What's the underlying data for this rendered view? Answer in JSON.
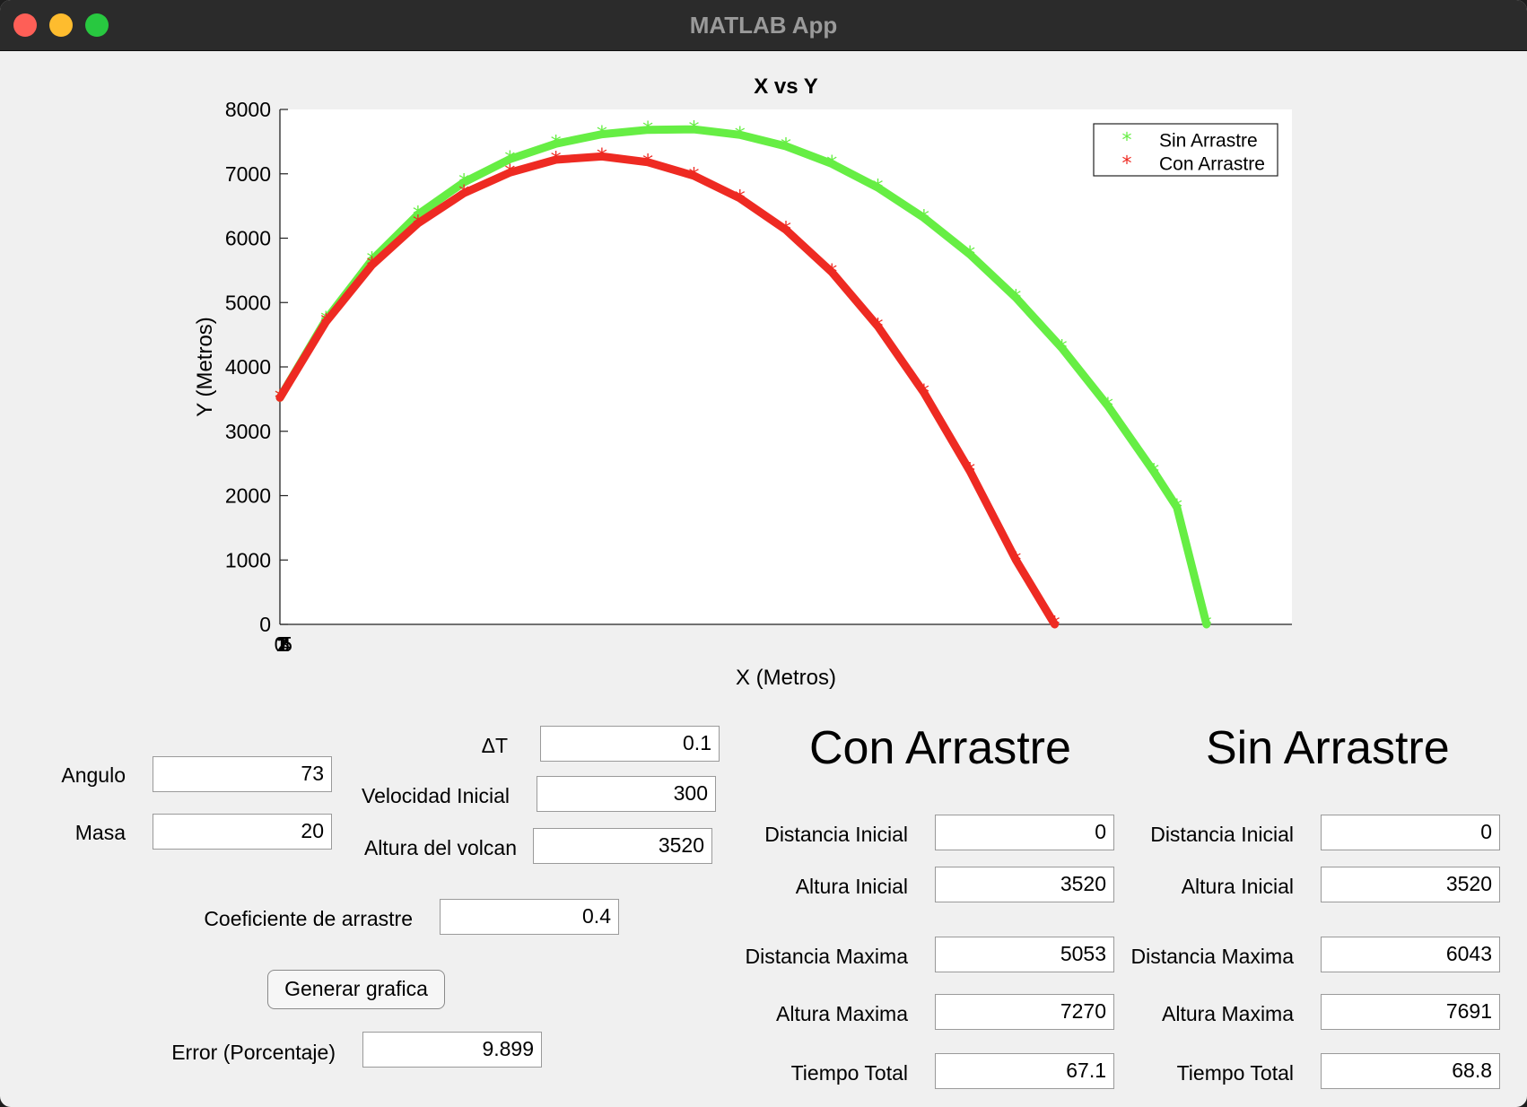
{
  "window": {
    "title": "MATLAB App"
  },
  "chart_data": {
    "type": "scatter",
    "title": "X vs Y",
    "xlabel": "X (Metros)",
    "ylabel": "Y (Metros)",
    "ylim": [
      0,
      8000
    ],
    "y_ticks": [
      "0",
      "1000",
      "2000",
      "3000",
      "4000",
      "5000",
      "6000",
      "7000",
      "8000"
    ],
    "x_ticks": [
      "0",
      "1",
      "2",
      "3",
      "4",
      "5"
    ],
    "marker": "*",
    "legend_position": "top-right",
    "series": [
      {
        "name": "Sin Arrastre",
        "color": "#66ee44",
        "x": [
          0,
          300,
          600,
          900,
          1200,
          1500,
          1800,
          2100,
          2400,
          2700,
          3000,
          3300,
          3600,
          3900,
          4200,
          4500,
          4800,
          5100,
          5400,
          5700,
          5850,
          6043
        ],
        "y": [
          3520,
          4732,
          5660,
          6367,
          6868,
          7228,
          7467,
          7616,
          7684,
          7690,
          7606,
          7428,
          7155,
          6786,
          6317,
          5748,
          5075,
          4293,
          3393,
          2369,
          1819,
          0
        ]
      },
      {
        "name": "Con Arrastre",
        "color": "#ee2a22",
        "x": [
          0,
          300,
          600,
          900,
          1200,
          1500,
          1800,
          2100,
          2400,
          2700,
          3000,
          3300,
          3600,
          3900,
          4200,
          4500,
          4800,
          5053
        ],
        "y": [
          3520,
          4700,
          5580,
          6230,
          6700,
          7020,
          7220,
          7270,
          7180,
          6970,
          6620,
          6130,
          5470,
          4630,
          3600,
          2380,
          1000,
          0
        ]
      }
    ]
  },
  "inputs": {
    "angulo": {
      "label": "Angulo",
      "value": "73"
    },
    "masa": {
      "label": "Masa",
      "value": "20"
    },
    "dt": {
      "label": "ΔT",
      "value": "0.1"
    },
    "velocidad": {
      "label": "Velocidad Inicial",
      "value": "300"
    },
    "altura": {
      "label": "Altura del volcan",
      "value": "3520"
    },
    "coef": {
      "label": "Coeficiente de arrastre",
      "value": "0.4"
    }
  },
  "button": {
    "label": "Generar grafica"
  },
  "error": {
    "label": "Error (Porcentaje)",
    "value": "9.899"
  },
  "labels": {
    "distancia_inicial": "Distancia Inicial",
    "altura_inicial": "Altura Inicial",
    "distancia_maxima": "Distancia Maxima",
    "altura_maxima": "Altura Maxima",
    "tiempo_total": "Tiempo Total"
  },
  "con": {
    "heading": "Con Arrastre",
    "distancia_inicial": "0",
    "altura_inicial": "3520",
    "distancia_maxima": "5053",
    "altura_maxima": "7270",
    "tiempo_total": "67.1"
  },
  "sin": {
    "heading": "Sin Arrastre",
    "distancia_inicial": "0",
    "altura_inicial": "3520",
    "distancia_maxima": "6043",
    "altura_maxima": "7691",
    "tiempo_total": "68.8"
  }
}
